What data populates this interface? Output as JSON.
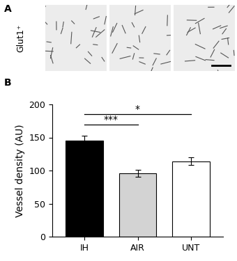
{
  "chart_data": {
    "type": "bar",
    "y_label": "Vessel density (AU)",
    "categories": [
      "IH",
      "AIR",
      "UNT"
    ],
    "values": [
      145,
      96,
      114
    ],
    "errors": [
      8,
      5,
      6
    ],
    "colors": [
      "#000000",
      "#d3d3d3",
      "#ffffff"
    ],
    "ylim": [
      0,
      200
    ],
    "yticks": [
      0,
      50,
      100,
      150,
      200
    ],
    "grid": false,
    "annotations": [
      {
        "from": "IH",
        "to": "AIR",
        "label": "***"
      },
      {
        "from": "IH",
        "to": "UNT",
        "label": "*"
      }
    ]
  },
  "panel_labels": [
    "A",
    "B"
  ],
  "image_row_label": "Glut1⁺"
}
